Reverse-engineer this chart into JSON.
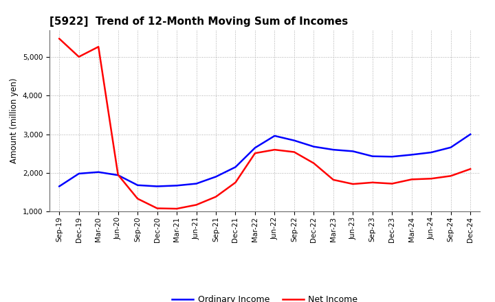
{
  "title": "[5922]  Trend of 12-Month Moving Sum of Incomes",
  "ylabel": "Amount (million yen)",
  "ylim": [
    1000,
    5700
  ],
  "yticks": [
    1000,
    2000,
    3000,
    4000,
    5000
  ],
  "x_labels": [
    "Sep-19",
    "Dec-19",
    "Mar-20",
    "Jun-20",
    "Sep-20",
    "Dec-20",
    "Mar-21",
    "Jun-21",
    "Sep-21",
    "Dec-21",
    "Mar-22",
    "Jun-22",
    "Sep-22",
    "Dec-22",
    "Mar-23",
    "Jun-23",
    "Sep-23",
    "Dec-23",
    "Mar-24",
    "Jun-24",
    "Sep-24",
    "Dec-24"
  ],
  "ordinary_y": [
    1650,
    1980,
    2020,
    1940,
    1680,
    1650,
    1670,
    1720,
    1900,
    2150,
    2650,
    2960,
    2840,
    2680,
    2600,
    2560,
    2430,
    2420,
    2470,
    2530,
    2660,
    3000
  ],
  "net_y": [
    5480,
    5010,
    5270,
    1950,
    1330,
    1080,
    1070,
    1170,
    1380,
    1750,
    2510,
    2600,
    2540,
    2250,
    1820,
    1710,
    1750,
    1720,
    1830,
    1850,
    1920,
    2100
  ],
  "ordinary_color": "#0000ff",
  "net_color": "#ff0000",
  "background_color": "#ffffff",
  "grid_color": "#aaaaaa",
  "legend_ordinary": "Ordinary Income",
  "legend_net": "Net Income",
  "title_fontsize": 11,
  "ylabel_fontsize": 8.5,
  "tick_fontsize": 7.5
}
